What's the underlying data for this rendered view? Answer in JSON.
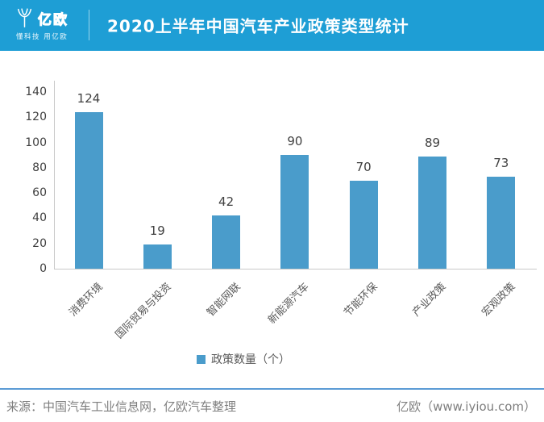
{
  "header": {
    "logo_text": "亿欧",
    "logo_tagline": "懂科技 用亿欧",
    "title": "2020上半年中国汽车产业政策类型统计"
  },
  "chart_data": {
    "type": "bar",
    "title": "2020上半年中国汽车产业政策类型统计",
    "categories": [
      "消费环境",
      "国际贸易与投资",
      "智能网联",
      "新能源汽车",
      "节能环保",
      "产业政策",
      "宏观政策"
    ],
    "series": [
      {
        "name": "政策数量（个）",
        "values": [
          124,
          19,
          42,
          90,
          70,
          89,
          73
        ]
      }
    ],
    "xlabel": "",
    "ylabel": "",
    "ylim": [
      0,
      140
    ],
    "yticks": [
      0,
      20,
      40,
      60,
      80,
      100,
      120,
      140
    ],
    "grid": false,
    "legend_position": "bottom",
    "bar_color": "#4a9ccb",
    "category_label_rotation_deg": 45
  },
  "footer": {
    "source": "来源：中国汽车工业信息网，亿欧汽车整理",
    "brand": "亿欧（www.iyiou.com）"
  },
  "colors": {
    "banner": "#1e9ed5",
    "bar": "#4a9ccb",
    "axis": "#c9c9c9",
    "tick_text": "#404040",
    "category_text": "#595959",
    "footer_line": "#5b9bd5",
    "footer_text": "#7f7f7f"
  }
}
